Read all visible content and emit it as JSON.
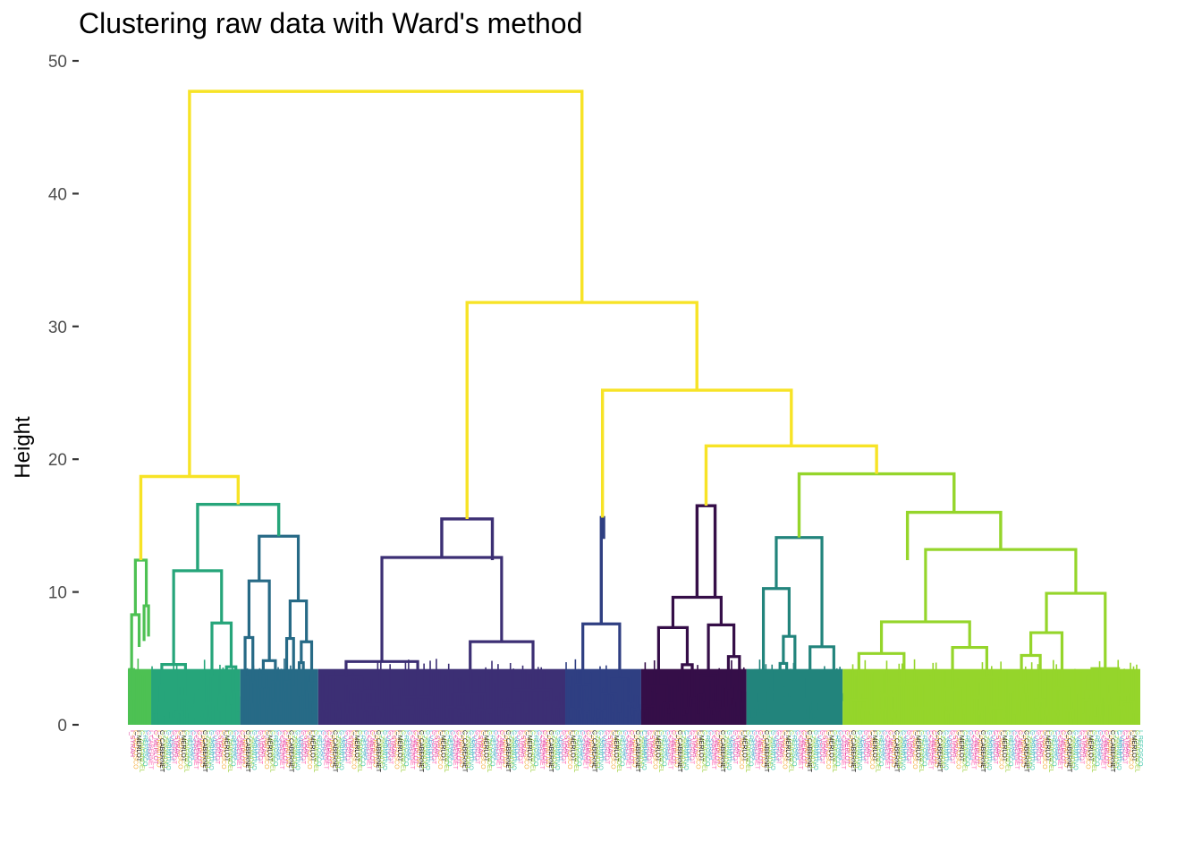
{
  "chart_data": {
    "type": "dendrogram",
    "title": "Clustering raw data with Ward's method",
    "xlabel": "",
    "ylabel": "Height",
    "ylim": [
      0,
      50
    ],
    "yticks": [
      0,
      10,
      20,
      30,
      40,
      50
    ],
    "grid": false,
    "legend": "none",
    "merge_heights": {
      "root": 47.7,
      "left_group": 18.7,
      "left_subgroup": 16.6,
      "center_group": 31.8,
      "center_left": 15.5,
      "right_group": 25.2,
      "right_left": 15.6,
      "right_right": 21.0,
      "right_right_left": 16.5,
      "right_right_right": 18.9,
      "far_right": 16.0
    },
    "clusters": [
      {
        "id": 1,
        "color": "#4DC153",
        "range": [
          0.0,
          0.023
        ]
      },
      {
        "id": 2,
        "color": "#26A57A",
        "range": [
          0.023,
          0.111
        ]
      },
      {
        "id": 3,
        "color": "#276A86",
        "range": [
          0.111,
          0.188
        ]
      },
      {
        "id": 4,
        "color": "#3C2F74",
        "range": [
          0.188,
          0.432
        ]
      },
      {
        "id": 5,
        "color": "#2F3F82",
        "range": [
          0.432,
          0.507
        ]
      },
      {
        "id": 6,
        "color": "#350E48",
        "range": [
          0.507,
          0.611
        ]
      },
      {
        "id": 7,
        "color": "#22847C",
        "range": [
          0.611,
          0.706
        ]
      },
      {
        "id": 8,
        "color": "#95D52B",
        "range": [
          0.706,
          1.0
        ]
      }
    ],
    "link_color": "#F7E326",
    "leaf_label_colors": [
      "#000000",
      "#E0399A",
      "#5DA5DA",
      "#9ACD32",
      "#F5B041",
      "#FF69B4",
      "#48C9B0"
    ],
    "leaf_labels": [
      "I_SYRAH",
      "C_REFOSCO",
      "I_MERLOT",
      "C_ZINFANDEL",
      "I_REFOSCO",
      "C_SYRAH",
      "I_CABERNET",
      "C_MERLOT",
      "I_PRIMITIVO",
      "C_CABERNET",
      "I_ZINFANDEL",
      "C_PRIMITIVO",
      "I_VERDOT",
      "C_VERDOT"
    ]
  }
}
